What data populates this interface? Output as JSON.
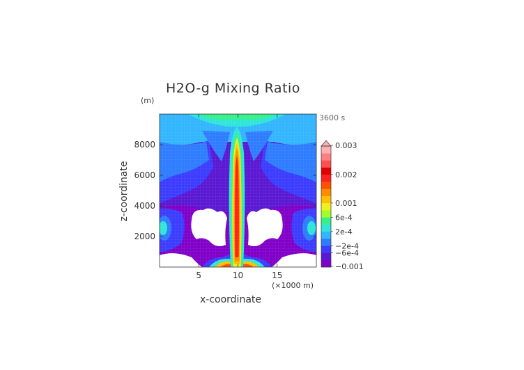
{
  "chart_data": {
    "type": "heatmap",
    "title": "H2O-g Mixing Ratio",
    "xlabel": "x-coordinate",
    "ylabel": "z-coordinate",
    "x_unit_label": "(×1000 m)",
    "y_unit_label": "(m)",
    "time_label": "3600 s",
    "xlim": [
      0,
      20
    ],
    "ylim": [
      0,
      10000
    ],
    "x_ticks": [
      5,
      10,
      15
    ],
    "x_tick_labels": [
      "5",
      "10",
      "15"
    ],
    "y_ticks": [
      2000,
      4000,
      6000,
      8000
    ],
    "y_tick_labels": [
      "2000",
      "4000",
      "6000",
      "8000"
    ],
    "colorbar": {
      "levels_label_values": [
        0.003,
        0.002,
        0.001,
        0.0006,
        0.0002,
        -0.0002,
        -0.0006,
        -0.001
      ],
      "tick_labels": [
        "0.003",
        "0.002",
        "0.001",
        "6e-4",
        "2e-4",
        "−2e-4",
        "−6e-4",
        "−0.001"
      ],
      "colors_bottom_to_top": [
        "#8000c8",
        "#5a18d2",
        "#3c3cff",
        "#2e7cff",
        "#33b5ff",
        "#2ee6d8",
        "#38f08a",
        "#a0ff28",
        "#f0f020",
        "#ffc000",
        "#ff8c00",
        "#ff5000",
        "#ff2020",
        "#e00000",
        "#ff5050",
        "#ff8080",
        "#ffb0b0"
      ],
      "extend_top": true
    },
    "field_description_values": {
      "plume_center_x": 10,
      "plume_top_z": 8800,
      "max_value_region": 0.003,
      "background_min": -0.001
    }
  }
}
